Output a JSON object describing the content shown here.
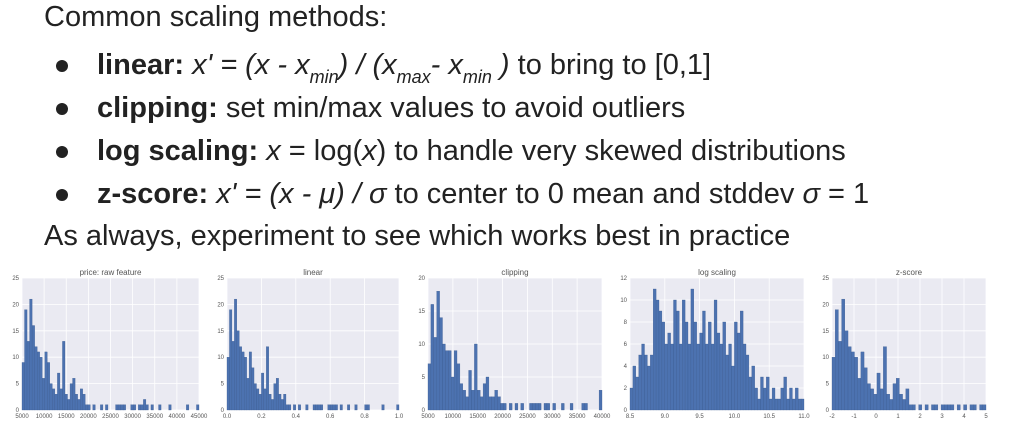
{
  "heading": "Common scaling methods:",
  "bullets": [
    {
      "term": "linear:",
      "formula_parts": [
        "x' = (x - x",
        "min",
        ") / (x",
        "max",
        "- x",
        "min",
        " )"
      ],
      "rest": " to bring to [0,1]"
    },
    {
      "term": "clipping:",
      "rest": " set min/max values to avoid outliers"
    },
    {
      "term": "log scaling:",
      "formula_parts": [
        "x",
        " = log(",
        "x",
        ")"
      ],
      "rest": " to handle very skewed distributions"
    },
    {
      "term": "z-score:",
      "formula_parts": [
        "x' = (x - μ) / σ"
      ],
      "rest": " to center to 0 mean and stddev ",
      "rest_italic": "σ",
      "rest_tail": " = 1"
    }
  ],
  "closing": "As always, experiment to see which works best in practice",
  "colors": {
    "bar": "#4c72b0",
    "plot_bg": "#eaeaf2",
    "grid": "#ffffff"
  },
  "chart_data": [
    {
      "type": "bar",
      "title": "price: raw feature",
      "xlim": [
        5000,
        45000
      ],
      "ylim": [
        0,
        25
      ],
      "xticks": [
        "5000",
        "10000",
        "15000",
        "20000",
        "25000",
        "30000",
        "35000",
        "40000",
        "45000"
      ],
      "yticks": [
        "0",
        "5",
        "10",
        "15",
        "20",
        "25"
      ],
      "values": [
        9,
        19,
        13,
        21,
        16,
        12,
        11,
        10,
        6,
        11,
        9,
        5,
        4,
        3,
        7,
        4,
        13,
        3,
        2,
        5,
        6,
        3,
        2,
        4,
        3,
        1,
        1,
        0,
        1,
        0,
        0,
        1,
        0,
        1,
        0,
        0,
        0,
        1,
        1,
        1,
        1,
        0,
        0,
        1,
        1,
        0,
        1,
        1,
        2,
        1,
        0,
        1,
        0,
        0,
        1,
        0,
        0,
        0,
        1,
        0,
        0,
        0,
        0,
        0,
        0,
        1,
        0,
        0,
        0,
        1
      ]
    },
    {
      "type": "bar",
      "title": "linear",
      "xlim": [
        0,
        1
      ],
      "ylim": [
        0,
        25
      ],
      "xticks": [
        "0.0",
        "0.2",
        "0.4",
        "0.6",
        "0.8",
        "1.0"
      ],
      "yticks": [
        "0",
        "5",
        "10",
        "15",
        "20",
        "25"
      ],
      "values": [
        10,
        19,
        13,
        21,
        15,
        12,
        11,
        10,
        6,
        11,
        8,
        5,
        4,
        3,
        7,
        4,
        12,
        3,
        2,
        5,
        6,
        3,
        2,
        3,
        1,
        1,
        0,
        1,
        0,
        1,
        0,
        0,
        1,
        0,
        0,
        1,
        1,
        1,
        1,
        0,
        0,
        1,
        1,
        1,
        1,
        0,
        1,
        0,
        0,
        1,
        0,
        0,
        1,
        0,
        0,
        0,
        1,
        1,
        0,
        0,
        0,
        0,
        0,
        1,
        0,
        0,
        0,
        0,
        0,
        1
      ]
    },
    {
      "type": "bar",
      "title": "clipping",
      "xlim": [
        5000,
        40000
      ],
      "ylim": [
        0,
        20
      ],
      "xticks": [
        "5000",
        "10000",
        "15000",
        "20000",
        "25000",
        "30000",
        "35000",
        "40000"
      ],
      "yticks": [
        "0",
        "5",
        "10",
        "15",
        "20"
      ],
      "values": [
        7,
        16,
        11,
        18,
        14,
        10,
        9,
        9,
        5,
        9,
        7,
        4,
        3,
        2,
        6,
        3,
        10,
        3,
        2,
        4,
        5,
        2,
        2,
        3,
        2,
        1,
        1,
        0,
        1,
        0,
        1,
        0,
        1,
        0,
        0,
        1,
        1,
        1,
        1,
        0,
        1,
        1,
        0,
        1,
        0,
        0,
        1,
        0,
        0,
        1,
        0,
        0,
        0,
        1,
        1,
        0,
        0,
        0,
        0,
        3
      ]
    },
    {
      "type": "bar",
      "title": "log scaling",
      "xlim": [
        8.5,
        11.0
      ],
      "ylim": [
        0,
        12
      ],
      "xticks": [
        "8.5",
        "9.0",
        "9.5",
        "10.0",
        "10.5",
        "11.0"
      ],
      "yticks": [
        "0",
        "2",
        "4",
        "6",
        "8",
        "10",
        "12"
      ],
      "values": [
        2,
        4,
        3,
        5,
        6,
        5,
        4,
        5,
        11,
        10,
        9,
        8,
        6,
        7,
        6,
        10,
        9,
        6,
        10,
        8,
        6,
        11,
        8,
        6,
        7,
        9,
        6,
        8,
        6,
        10,
        7,
        6,
        8,
        5,
        6,
        4,
        8,
        7,
        9,
        6,
        5,
        3,
        4,
        2,
        1,
        3,
        2,
        3,
        1,
        2,
        1,
        1,
        2,
        3,
        1,
        2,
        1,
        2,
        1,
        1
      ]
    },
    {
      "type": "bar",
      "title": "z-score",
      "xlim": [
        -2,
        5
      ],
      "ylim": [
        0,
        25
      ],
      "xticks": [
        "-2",
        "-1",
        "0",
        "1",
        "2",
        "3",
        "4",
        "5"
      ],
      "yticks": [
        "0",
        "5",
        "10",
        "15",
        "20",
        "25"
      ],
      "values": [
        10,
        19,
        13,
        21,
        15,
        12,
        11,
        10,
        6,
        11,
        8,
        5,
        4,
        3,
        7,
        4,
        12,
        3,
        2,
        5,
        6,
        3,
        2,
        4,
        1,
        1,
        0,
        1,
        0,
        1,
        0,
        1,
        1,
        0,
        1,
        1,
        1,
        1,
        0,
        1,
        0,
        1,
        0,
        1,
        1,
        0,
        1,
        1
      ]
    }
  ]
}
